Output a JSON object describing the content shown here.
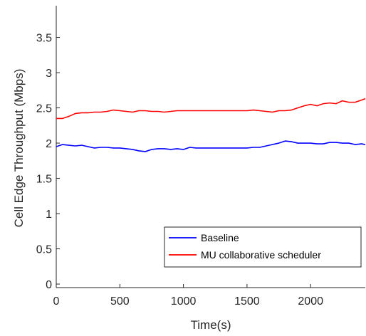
{
  "chart_data": {
    "type": "line",
    "xlabel": "Time(s)",
    "ylabel": "Cell Edge Throughput (Mbps)",
    "xlim": [
      0,
      2430
    ],
    "ylim": [
      -0.05,
      3.95
    ],
    "xticks": [
      0,
      500,
      1000,
      1500,
      2000
    ],
    "xtick_labels": [
      "0",
      "500",
      "1000",
      "1500",
      "2000"
    ],
    "yticks": [
      0,
      0.5,
      1,
      1.5,
      2,
      2.5,
      3,
      3.5
    ],
    "ytick_labels": [
      "0",
      "0.5",
      "1",
      "1.5",
      "2",
      "2.5",
      "3",
      "3.5"
    ],
    "grid": false,
    "legend_position": "bottom-right",
    "series": [
      {
        "name": "Baseline",
        "color": "#0000ff",
        "x": [
          0,
          50,
          100,
          150,
          200,
          250,
          300,
          350,
          400,
          450,
          500,
          550,
          600,
          650,
          700,
          750,
          800,
          850,
          900,
          950,
          1000,
          1050,
          1100,
          1200,
          1300,
          1400,
          1500,
          1550,
          1600,
          1650,
          1700,
          1750,
          1800,
          1850,
          1900,
          1950,
          2000,
          2050,
          2100,
          2150,
          2200,
          2250,
          2300,
          2350,
          2400,
          2430
        ],
        "values": [
          1.95,
          1.98,
          1.97,
          1.96,
          1.97,
          1.95,
          1.93,
          1.94,
          1.94,
          1.93,
          1.93,
          1.92,
          1.91,
          1.89,
          1.88,
          1.91,
          1.92,
          1.92,
          1.91,
          1.92,
          1.91,
          1.94,
          1.93,
          1.93,
          1.93,
          1.93,
          1.93,
          1.94,
          1.94,
          1.96,
          1.98,
          2.0,
          2.03,
          2.02,
          2.0,
          2.0,
          2.0,
          1.99,
          1.99,
          2.01,
          2.01,
          2.0,
          2.0,
          1.98,
          1.99,
          1.98
        ]
      },
      {
        "name": "MU collaborative scheduler",
        "color": "#ff0000",
        "x": [
          0,
          50,
          100,
          150,
          200,
          250,
          300,
          350,
          400,
          450,
          500,
          550,
          600,
          650,
          700,
          750,
          800,
          850,
          900,
          950,
          1000,
          1100,
          1200,
          1300,
          1400,
          1500,
          1550,
          1600,
          1650,
          1700,
          1750,
          1800,
          1850,
          1900,
          1950,
          2000,
          2050,
          2100,
          2150,
          2200,
          2250,
          2300,
          2350,
          2400,
          2430
        ],
        "values": [
          2.35,
          2.35,
          2.38,
          2.42,
          2.43,
          2.43,
          2.44,
          2.44,
          2.45,
          2.47,
          2.46,
          2.45,
          2.44,
          2.46,
          2.46,
          2.45,
          2.45,
          2.44,
          2.45,
          2.46,
          2.46,
          2.46,
          2.46,
          2.46,
          2.46,
          2.46,
          2.47,
          2.46,
          2.45,
          2.44,
          2.46,
          2.46,
          2.47,
          2.5,
          2.53,
          2.55,
          2.53,
          2.56,
          2.57,
          2.56,
          2.6,
          2.58,
          2.58,
          2.61,
          2.63
        ]
      }
    ]
  }
}
